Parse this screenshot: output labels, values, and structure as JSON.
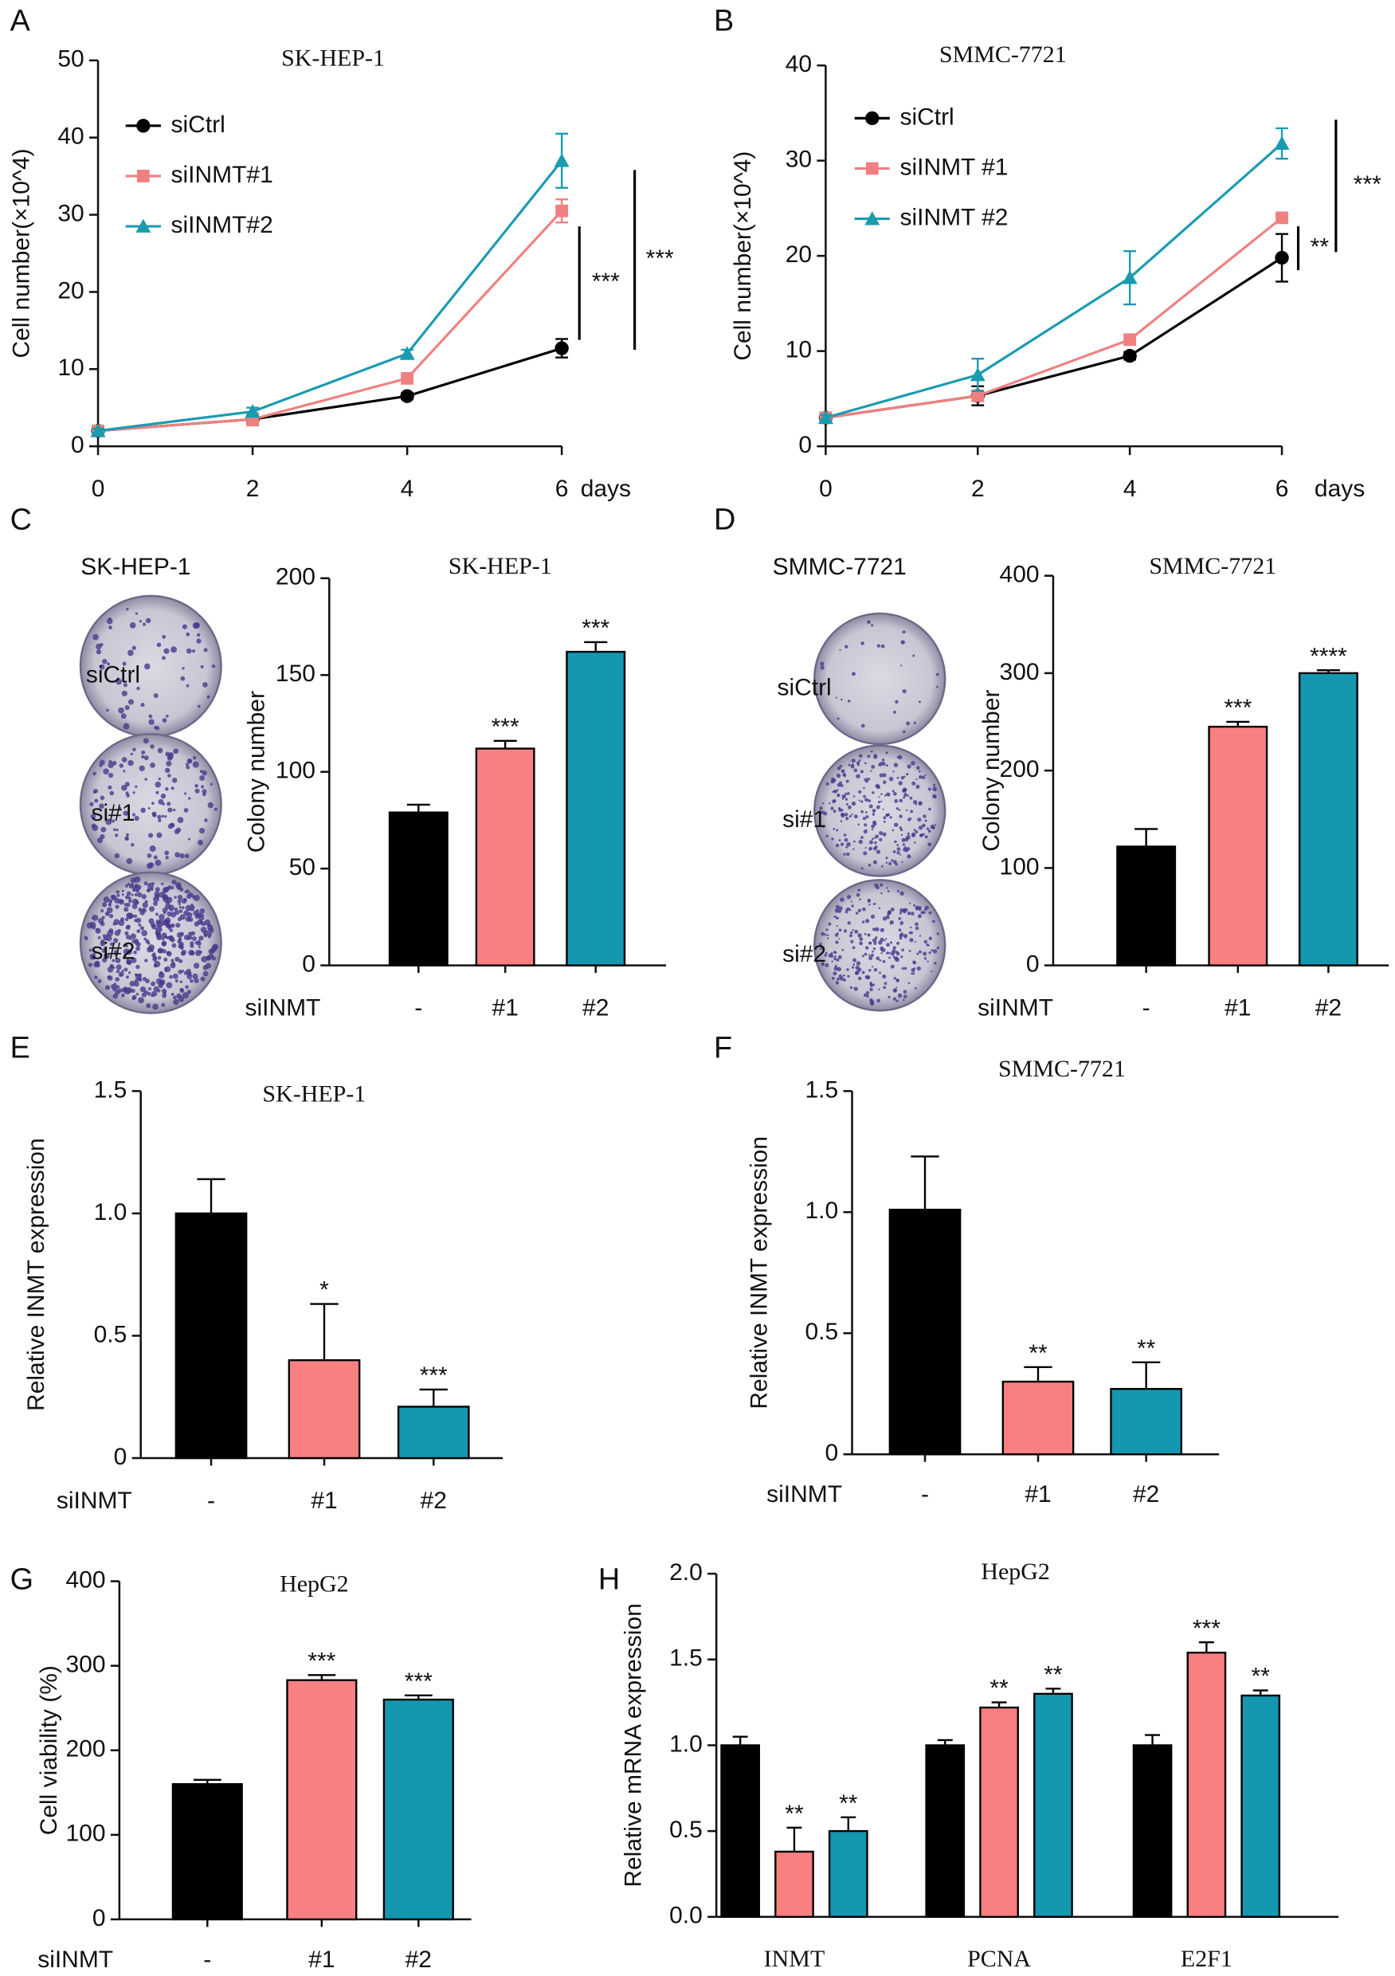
{
  "chart_data": [
    {
      "panel": "A",
      "type": "line",
      "title": "SK-HEP-1",
      "ylabel": "Cell number(×10^4)",
      "xlabel": "days",
      "x": [
        0,
        2,
        4,
        6
      ],
      "xlim": [
        0,
        6
      ],
      "xticks": [
        0,
        2,
        4,
        6
      ],
      "ylim": [
        0,
        50
      ],
      "yticks": [
        0,
        10,
        20,
        30,
        40,
        50
      ],
      "legend": "upper left",
      "series": [
        {
          "name": "siCtrl",
          "color": "#000000",
          "marker": "circle",
          "values": [
            2,
            3.5,
            6.5,
            12.7
          ],
          "errors": [
            0.3,
            0.5,
            0.4,
            1.2
          ]
        },
        {
          "name": "siINMT#1",
          "color": "#f08080",
          "marker": "square",
          "values": [
            2,
            3.5,
            8.8,
            30.5
          ],
          "errors": [
            0.3,
            0.8,
            0.5,
            1.5
          ]
        },
        {
          "name": "siINMT#2",
          "color": "#1a9bb0",
          "marker": "triangle",
          "values": [
            2,
            4.5,
            12,
            37
          ],
          "errors": [
            0.3,
            0.5,
            0.5,
            3.5
          ]
        }
      ],
      "brackets": [
        {
          "text": "***",
          "range": [
            13.8,
            28.5
          ]
        },
        {
          "text": "***",
          "range": [
            12.5,
            35.8
          ]
        }
      ]
    },
    {
      "panel": "B",
      "type": "line",
      "title": "SMMC-7721",
      "ylabel": "Cell number(×10^4)",
      "xlabel": "days",
      "x": [
        0,
        2,
        4,
        6
      ],
      "xlim": [
        0,
        6
      ],
      "xticks": [
        0,
        2,
        4,
        6
      ],
      "ylim": [
        0,
        40
      ],
      "yticks": [
        0,
        10,
        20,
        30,
        40
      ],
      "legend": "upper left",
      "series": [
        {
          "name": "siCtrl",
          "color": "#000000",
          "marker": "circle",
          "values": [
            3,
            5.3,
            9.5,
            19.8
          ],
          "errors": [
            0.3,
            1,
            0.4,
            2.5
          ]
        },
        {
          "name": "siINMT #1",
          "color": "#f08080",
          "marker": "square",
          "values": [
            3,
            5.3,
            11.2,
            24
          ],
          "errors": [
            0.3,
            0.5,
            0.5,
            0.5
          ]
        },
        {
          "name": "siINMT #2",
          "color": "#1a9bb0",
          "marker": "triangle",
          "values": [
            3,
            7.5,
            17.7,
            31.8
          ],
          "errors": [
            0.3,
            1.7,
            2.8,
            1.6
          ]
        }
      ],
      "brackets": [
        {
          "text": "**",
          "range": [
            18.5,
            23.1
          ]
        },
        {
          "text": "***",
          "range": [
            20.4,
            34.3
          ]
        }
      ]
    },
    {
      "panel": "C",
      "type": "bar",
      "title": "SK-HEP-1",
      "ylabel": "Colony number",
      "xlabel": "siINMT",
      "categories": [
        "-",
        "#1",
        "#2"
      ],
      "values": [
        79,
        112,
        162
      ],
      "errors": [
        4,
        4,
        5
      ],
      "colors": [
        "#000000",
        "#f98080",
        "#1597b0"
      ],
      "significance": [
        null,
        "***",
        "***"
      ],
      "ylim": [
        0,
        200
      ],
      "yticks": [
        0,
        50,
        100,
        150,
        200
      ],
      "image_panel": {
        "title": "SK-HEP-1",
        "labels": [
          "siCtrl",
          "si#1",
          "si#2"
        ]
      }
    },
    {
      "panel": "D",
      "type": "bar",
      "title": "SMMC-7721",
      "ylabel": "Colony number",
      "xlabel": "siINMT",
      "categories": [
        "-",
        "#1",
        "#2"
      ],
      "values": [
        122,
        245,
        300
      ],
      "errors": [
        18,
        5,
        3
      ],
      "colors": [
        "#000000",
        "#f98080",
        "#1597b0"
      ],
      "significance": [
        null,
        "***",
        "****"
      ],
      "ylim": [
        0,
        400
      ],
      "yticks": [
        0,
        100,
        200,
        300,
        400
      ],
      "image_panel": {
        "title": "SMMC-7721",
        "labels": [
          "siCtrl",
          "si#1",
          "si#2"
        ]
      }
    },
    {
      "panel": "E",
      "type": "bar",
      "title": "SK-HEP-1",
      "ylabel": "Relative INMT expression",
      "xlabel": "siINMT",
      "categories": [
        "-",
        "#1",
        "#2"
      ],
      "values": [
        1.0,
        0.4,
        0.21
      ],
      "errors": [
        0.14,
        0.23,
        0.07
      ],
      "colors": [
        "#000000",
        "#f98080",
        "#1597b0"
      ],
      "significance": [
        null,
        "*",
        "***"
      ],
      "ylim": [
        0,
        1.5
      ],
      "yticks": [
        0,
        0.5,
        {
          "value": 1,
          "label": "1.0"
        },
        1.5
      ]
    },
    {
      "panel": "F",
      "type": "bar",
      "title": "SMMC-7721",
      "ylabel": "Relative INMT expression",
      "xlabel": "siINMT",
      "categories": [
        "-",
        "#1",
        "#2"
      ],
      "values": [
        1.01,
        0.3,
        0.27
      ],
      "errors": [
        0.22,
        0.06,
        0.11
      ],
      "colors": [
        "#000000",
        "#f98080",
        "#1597b0"
      ],
      "significance": [
        null,
        "**",
        "**"
      ],
      "ylim": [
        0,
        1.5
      ],
      "yticks": [
        0,
        0.5,
        {
          "value": 1,
          "label": "1.0"
        },
        1.5
      ]
    },
    {
      "panel": "G",
      "type": "bar",
      "title": "HepG2",
      "ylabel": "Cell viability (%)",
      "xlabel": "siINMT",
      "categories": [
        "-",
        "#1",
        "#2"
      ],
      "values": [
        160,
        283,
        260
      ],
      "errors": [
        5,
        6,
        5
      ],
      "colors": [
        "#000000",
        "#f98080",
        "#1597b0"
      ],
      "significance": [
        null,
        "***",
        "***"
      ],
      "ylim": [
        0,
        400
      ],
      "yticks": [
        0,
        100,
        200,
        300,
        400
      ]
    },
    {
      "panel": "H",
      "type": "bar",
      "title": "HepG2",
      "ylabel": "Relative mRNA expression",
      "categories": [
        "INMT",
        "PCNA",
        "E2F1"
      ],
      "ylim": [
        0,
        2
      ],
      "yticks": [
        {
          "value": 0,
          "label": "0.0"
        },
        0.5,
        {
          "value": 1,
          "label": "1.0"
        },
        1.5,
        {
          "value": 2,
          "label": "2.0"
        }
      ],
      "series": [
        {
          "color": "#000000",
          "values": [
            1.0,
            1.0,
            1.0
          ],
          "errors": [
            0.05,
            0.03,
            0.06
          ]
        },
        {
          "color": "#f98080",
          "values": [
            0.38,
            1.22,
            1.54
          ],
          "errors": [
            0.14,
            0.03,
            0.06
          ],
          "significance": [
            "**",
            "**",
            "***"
          ]
        },
        {
          "color": "#1597b0",
          "values": [
            0.5,
            1.3,
            1.29
          ],
          "errors": [
            0.08,
            0.03,
            0.03
          ],
          "significance": [
            "**",
            "**",
            "**"
          ]
        }
      ]
    }
  ]
}
